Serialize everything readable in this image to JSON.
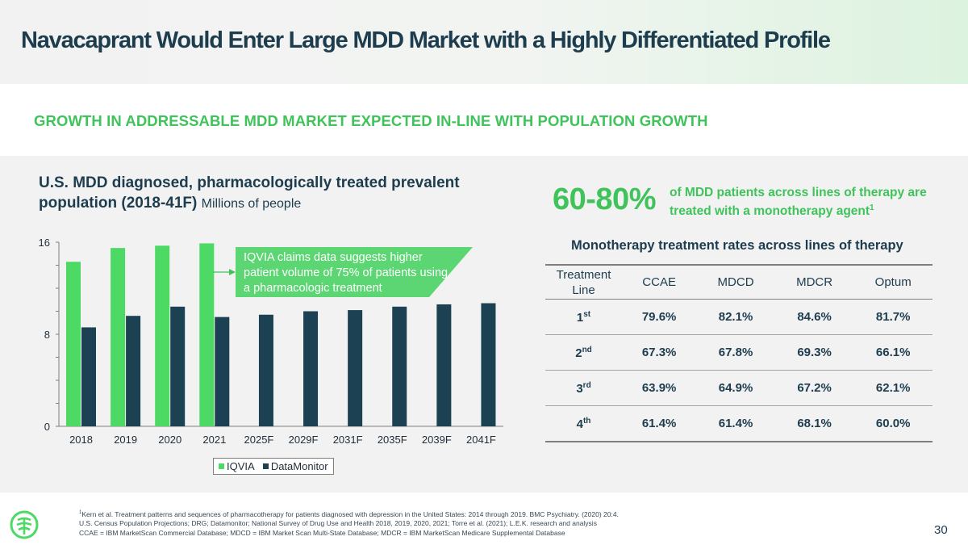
{
  "header": {
    "title": "Navacaprant Would Enter Large MDD Market with a Highly Differentiated Profile",
    "subtitle": "GROWTH IN ADDRESSABLE MDD MARKET EXPECTED IN-LINE WITH POPULATION GROWTH"
  },
  "chart_section": {
    "title": "U.S. MDD diagnosed, pharmacologically treated prevalent population (2018-41F)",
    "unit": "Millions of people",
    "callout": "IQVIA claims data suggests higher patient volume of 75% of patients using a pharmacologic treatment"
  },
  "chart_data": {
    "type": "bar",
    "title": "U.S. MDD diagnosed, pharmacologically treated prevalent population (2018-41F)",
    "ylabel": "Millions of people",
    "xlabel": "",
    "ylim": [
      0,
      16
    ],
    "yticks": [
      "0",
      "8",
      "16"
    ],
    "categories": [
      "2018",
      "2019",
      "2020",
      "2021",
      "2025F",
      "2029F",
      "2031F",
      "2035F",
      "2039F",
      "2041F"
    ],
    "series": [
      {
        "name": "IQVIA",
        "color": "#4cd964",
        "values": [
          14.3,
          15.5,
          15.7,
          15.9,
          null,
          null,
          null,
          null,
          null,
          null
        ]
      },
      {
        "name": "DataMonitor",
        "color": "#1b4152",
        "values": [
          8.6,
          9.6,
          10.4,
          9.5,
          9.7,
          10.0,
          10.1,
          10.4,
          10.6,
          10.7
        ]
      }
    ],
    "legend": "bottom"
  },
  "stat": {
    "value": "60-80%",
    "description": "of MDD patients across lines of therapy are treated with a monotherapy agent",
    "footnote_ref": "1"
  },
  "table": {
    "title": "Monotherapy treatment rates across lines of therapy",
    "headers": [
      "Treatment Line",
      "CCAE",
      "MDCD",
      "MDCR",
      "Optum"
    ],
    "rows": [
      {
        "line": "1",
        "suffix": "st",
        "values": [
          "79.6%",
          "82.1%",
          "84.6%",
          "81.7%"
        ]
      },
      {
        "line": "2",
        "suffix": "nd",
        "values": [
          "67.3%",
          "67.8%",
          "69.3%",
          "66.1%"
        ]
      },
      {
        "line": "3",
        "suffix": "rd",
        "values": [
          "63.9%",
          "64.9%",
          "67.2%",
          "62.1%"
        ]
      },
      {
        "line": "4",
        "suffix": "th",
        "values": [
          "61.4%",
          "61.4%",
          "68.1%",
          "60.0%"
        ]
      }
    ]
  },
  "footnotes": {
    "ref": "1",
    "line1": "Kern et al. Treatment patterns and sequences of pharmacotherapy for patients diagnosed with depression in the United States: 2014 through 2019. BMC Psychiatry. (2020) 20:4.",
    "line2": "U.S. Census Population Projections; DRG; Datamonitor; National Survey of Drug Use and Health 2018, 2019, 2020, 2021; Torre et al. (2021); L.E.K. research and analysis",
    "line3": "CCAE = IBM MarketScan Commercial Database; MDCD = IBM Market Scan Multi-State Database; MDCR = IBM MarketScan Medicare Supplemental Database"
  },
  "page_number": "30",
  "logo": {
    "icon": "leaf-shield-logo-icon"
  }
}
